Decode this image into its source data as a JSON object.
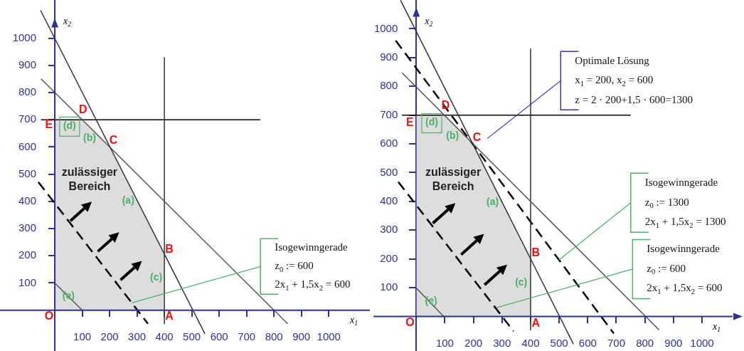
{
  "chart_data": [
    {
      "type": "line",
      "xlabel": "x$_{1}$",
      "ylabel": "x$_{2}$",
      "ref_lines": [
        {
          "axis": "y",
          "value": 0,
          "color": "#2e3192"
        },
        {
          "axis": "x",
          "value": 0,
          "color": "#2e3192"
        }
      ],
      "xlim": [
        -200,
        1150
      ],
      "ylim": [
        -150,
        1140
      ],
      "xticks": [
        100,
        200,
        300,
        400,
        500,
        600,
        700,
        800,
        900,
        1000
      ],
      "yticks": [
        100,
        200,
        300,
        400,
        500,
        600,
        700,
        800,
        900,
        1000
      ],
      "series": [
        {
          "type": "area",
          "color": "#d4d4d4",
          "x": [
            0,
            100,
            200,
            400,
            400
          ],
          "values": [
            700,
            700,
            600,
            200,
            0
          ]
        },
        {
          "color": "#333333",
          "x": [
            -52,
            548
          ],
          "values": [
            1102,
            -87
          ]
        },
        {
          "color": "#555555",
          "x": [
            -50,
            850
          ],
          "values": [
            850,
            -50
          ]
        },
        {
          "color": "#333333",
          "x": [
            400,
            400
          ],
          "values": [
            929,
            -50
          ]
        },
        {
          "color": "#000000",
          "x": [
            -50,
            750
          ],
          "values": [
            700,
            700
          ]
        },
        {
          "color": "#555555",
          "x": [
            0,
            100
          ],
          "values": [
            100,
            0
          ]
        },
        {
          "color": "#000000",
          "line_style": "dashed",
          "x": [
            -60,
            340
          ],
          "values": [
            471,
            -50
          ]
        }
      ],
      "annotations": [
        "O",
        "A",
        "B",
        "C",
        "D",
        "E",
        "(a)",
        "(b)",
        "(c)",
        "(d)",
        "(e)",
        "zulässiger\nBereich",
        "Isogewinngerade\nz$_{0}$ := 600\n2x$_{1}$ + 1,5x$_{2}$ = 600"
      ]
    },
    {
      "type": "line",
      "xlabel": "x$_{1}$",
      "ylabel": "x$_{2}$",
      "ref_lines": [
        {
          "axis": "y",
          "value": 0,
          "color": "#2e3192"
        }
      ],
      "xlim": [
        -150,
        1107
      ],
      "ylim": [
        -120,
        1100
      ],
      "xticks": [
        100,
        200,
        300,
        400,
        500,
        600,
        700,
        800,
        900,
        1000
      ],
      "yticks": [
        100,
        200,
        300,
        400,
        500,
        600,
        700,
        800,
        900,
        1000
      ],
      "series": [
        {
          "type": "area",
          "color": "#d4d4d4",
          "x": [
            0,
            100,
            200,
            400,
            400
          ],
          "values": [
            700,
            700,
            600,
            200,
            0
          ]
        },
        {
          "color": "#333333",
          "x": [
            -55,
            550
          ],
          "values": [
            1099,
            -96
          ]
        },
        {
          "color": "#555555",
          "x": [
            -50,
            850
          ],
          "values": [
            847,
            -47
          ]
        },
        {
          "color": "#333333",
          "x": [
            400,
            400
          ],
          "values": [
            930,
            -47
          ]
        },
        {
          "color": "#000000",
          "x": [
            -50,
            750
          ],
          "values": [
            700,
            700
          ]
        },
        {
          "color": "#555555",
          "x": [
            0,
            96
          ],
          "values": [
            99,
            0
          ]
        },
        {
          "color": "#000000",
          "line_style": "dashed",
          "x": [
            -63,
            340
          ],
          "values": [
            468,
            -51
          ]
        },
        {
          "color": "#000000",
          "line_style": "dashed",
          "x": [
            -72,
            691
          ],
          "values": [
            959,
            -59
          ]
        }
      ],
      "annotations": [
        "O",
        "A",
        "B",
        "C",
        "D",
        "E",
        "(a)",
        "(b)",
        "(c)",
        "(d)",
        "(e)",
        "zulässiger\nBereich",
        "Optimale Lösung\nx$_{1}$ = 200, x$_{2}$ = 600\nz = 2 · 200+1,5 · 600=1300",
        "Isogewinngerade\nz$_{0}$ := 1300\n2x$_{1}$ + 1,5x$_{2}$ = 1300",
        "Isogewinngerade\nz$_{0}$ := 600\n2x$_{1}$ + 1,5x$_{2}$ = 600"
      ]
    }
  ]
}
